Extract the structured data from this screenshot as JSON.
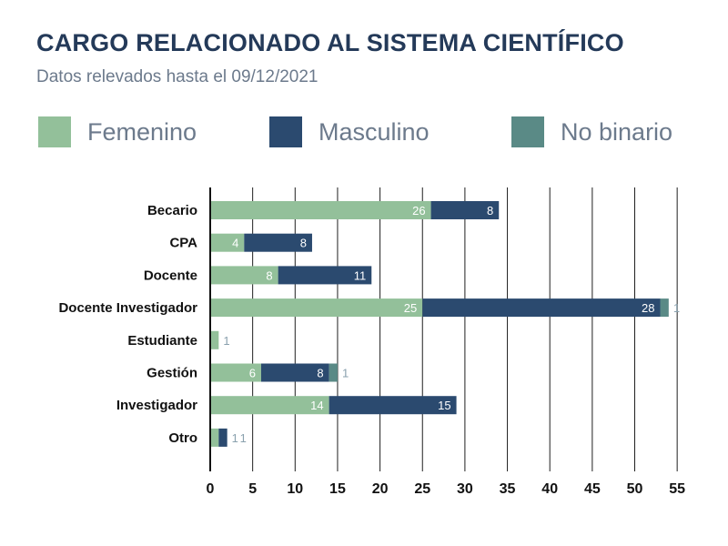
{
  "header": {
    "title": "CARGO RELACIONADO AL SISTEMA CIENTÍFICO",
    "subtitle": "Datos relevados hasta el 09/12/2021"
  },
  "legend": {
    "items": [
      {
        "label": "Femenino",
        "color": "#93c09a"
      },
      {
        "label": "Masculino",
        "color": "#2b4a6f"
      },
      {
        "label": "No binario",
        "color": "#5a8a86"
      }
    ]
  },
  "chart_data": {
    "type": "bar",
    "orientation": "horizontal",
    "stacked": true,
    "categories": [
      "Becario",
      "CPA",
      "Docente",
      "Docente Investigador",
      "Estudiante",
      "Gestión",
      "Investigador",
      "Otro"
    ],
    "series": [
      {
        "name": "Femenino",
        "values": [
          26,
          4,
          8,
          25,
          1,
          6,
          14,
          1
        ]
      },
      {
        "name": "Masculino",
        "values": [
          8,
          8,
          11,
          28,
          0,
          8,
          15,
          1
        ]
      },
      {
        "name": "No binario",
        "values": [
          0,
          0,
          0,
          1,
          0,
          1,
          0,
          0
        ]
      }
    ],
    "xticks": [
      0,
      5,
      10,
      15,
      20,
      25,
      30,
      35,
      40,
      45,
      50,
      55
    ],
    "xlim": [
      0,
      55
    ],
    "grid": true,
    "legend_position": "top"
  }
}
